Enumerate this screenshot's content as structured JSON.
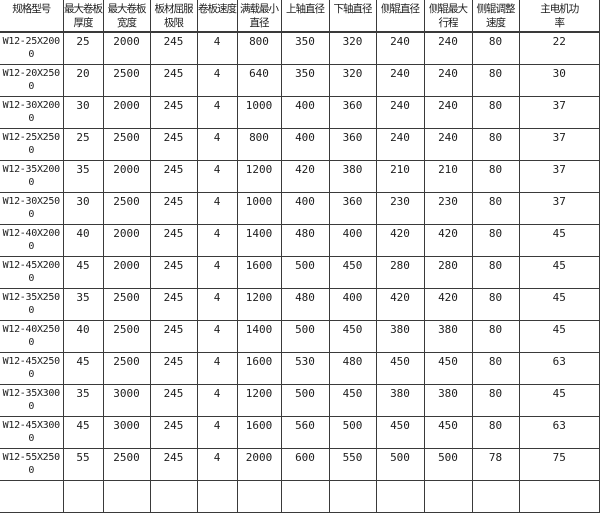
{
  "chart_data": {
    "type": "table",
    "title": "",
    "columns": [
      "规格型号",
      "最大卷板厚度",
      "最大卷板宽度",
      "板材屈服极限",
      "卷板速度",
      "满载最小直径",
      "上轴直径",
      "下轴直径",
      "侧辊直径",
      "侧辊最大行程",
      "侧辊调整速度",
      "主电机功率"
    ],
    "rows": [
      [
        "W12-25X2000",
        "25",
        "2000",
        "245",
        "4",
        "800",
        "350",
        "320",
        "240",
        "240",
        "80",
        "22"
      ],
      [
        "W12-20X2500",
        "20",
        "2500",
        "245",
        "4",
        "640",
        "350",
        "320",
        "240",
        "240",
        "80",
        "30"
      ],
      [
        "W12-30X2000",
        "30",
        "2000",
        "245",
        "4",
        "1000",
        "400",
        "360",
        "240",
        "240",
        "80",
        "37"
      ],
      [
        "W12-25X2500",
        "25",
        "2500",
        "245",
        "4",
        "800",
        "400",
        "360",
        "240",
        "240",
        "80",
        "37"
      ],
      [
        "W12-35X2000",
        "35",
        "2000",
        "245",
        "4",
        "1200",
        "420",
        "380",
        "210",
        "210",
        "80",
        "37"
      ],
      [
        "W12-30X2500",
        "30",
        "2500",
        "245",
        "4",
        "1000",
        "400",
        "360",
        "230",
        "230",
        "80",
        "37"
      ],
      [
        "W12-40X2000",
        "40",
        "2000",
        "245",
        "4",
        "1400",
        "480",
        "400",
        "420",
        "420",
        "80",
        "45"
      ],
      [
        "W12-45X2000",
        "45",
        "2000",
        "245",
        "4",
        "1600",
        "500",
        "450",
        "280",
        "280",
        "80",
        "45"
      ],
      [
        "W12-35X2500",
        "35",
        "2500",
        "245",
        "4",
        "1200",
        "480",
        "400",
        "420",
        "420",
        "80",
        "45"
      ],
      [
        "W12-40X2500",
        "40",
        "2500",
        "245",
        "4",
        "1400",
        "500",
        "450",
        "380",
        "380",
        "80",
        "45"
      ],
      [
        "W12-45X2500",
        "45",
        "2500",
        "245",
        "4",
        "1600",
        "530",
        "480",
        "450",
        "450",
        "80",
        "63"
      ],
      [
        "W12-35X3000",
        "35",
        "3000",
        "245",
        "4",
        "1200",
        "500",
        "450",
        "380",
        "380",
        "80",
        "45"
      ],
      [
        "W12-45X3000",
        "45",
        "3000",
        "245",
        "4",
        "1600",
        "560",
        "500",
        "450",
        "450",
        "80",
        "63"
      ],
      [
        "W12-55X2500",
        "55",
        "2500",
        "245",
        "4",
        "2000",
        "600",
        "550",
        "500",
        "500",
        "78",
        "75"
      ],
      [
        "",
        "",
        "",
        "",
        "",
        "",
        "",
        "",
        "",
        "",
        "",
        ""
      ]
    ],
    "layout": {
      "grid": true,
      "header_rows": 1,
      "bottom_row_clipped": true
    }
  },
  "colors": {
    "background": "#ffffff",
    "border": "#3a3a3a",
    "text": "#1c1c1c"
  }
}
